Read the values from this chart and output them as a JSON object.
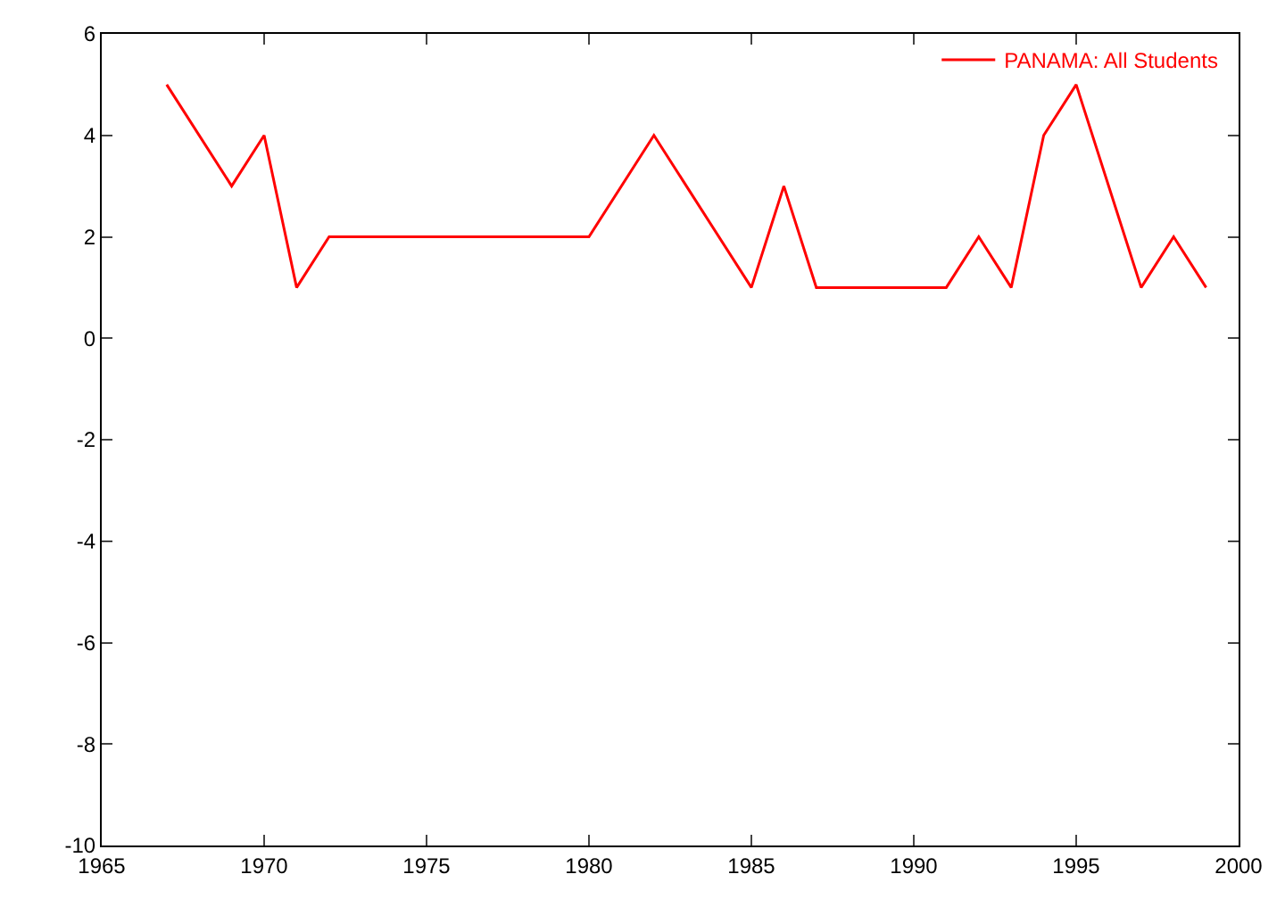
{
  "chart_data": {
    "type": "line",
    "x": [
      1967,
      1969,
      1970,
      1971,
      1972,
      1980,
      1982,
      1985,
      1986,
      1987,
      1991,
      1992,
      1993,
      1994,
      1995,
      1997,
      1998,
      1999
    ],
    "series": [
      {
        "name": "PANAMA: All Students",
        "color": "#ff0000",
        "values": [
          5,
          3,
          4,
          1,
          2,
          2,
          4,
          1,
          3,
          1,
          1,
          2,
          1,
          4,
          5,
          1,
          2,
          1
        ]
      }
    ],
    "xlim": [
      1965,
      2000
    ],
    "xticks": [
      1965,
      1970,
      1975,
      1980,
      1985,
      1990,
      1995,
      2000
    ],
    "ylim": [
      -10,
      6
    ],
    "yticks": [
      -10,
      -8,
      -6,
      -4,
      -2,
      0,
      2,
      4,
      6
    ],
    "legend": "top right",
    "marker": "none",
    "line_style": "solid"
  }
}
